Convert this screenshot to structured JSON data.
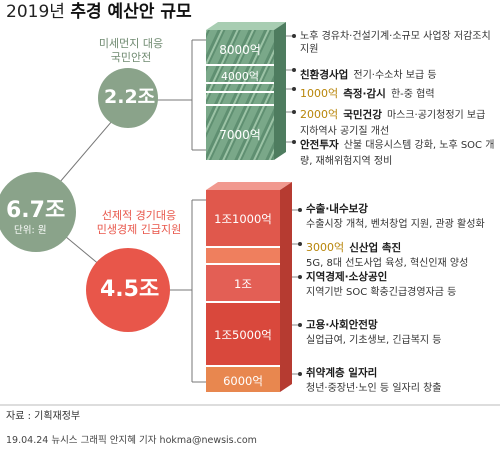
{
  "title_year": "2019년",
  "title_main": "추경 예산안 규모",
  "total": {
    "value": "6.7조",
    "unit_label": "단위: 원"
  },
  "group1": {
    "value": "2.2조",
    "label_lines": [
      "미세먼지 대응",
      "국민안전"
    ],
    "color": "#8aa38a",
    "items": [
      {
        "stack_label": "8000억",
        "title": "",
        "desc": "노후 경유차·건설기계·소규모 사업장 저감조치 지원"
      },
      {
        "stack_label": "4000억",
        "title": "친환경사업",
        "desc": "전기·수소차 보급 등"
      },
      {
        "amount": "1000억",
        "title": "측정·감시",
        "desc": "한-중 협력"
      },
      {
        "amount": "2000억",
        "title": "국민건강",
        "desc": "마스크·공기청정기 보급 지하역사 공기질 개선"
      },
      {
        "stack_label": "7000억",
        "title": "안전투자",
        "desc": "산불 대응시스템 강화, 노후 SOC 개량, 재해위험지역 정비"
      }
    ]
  },
  "group2": {
    "value": "4.5조",
    "label_lines": [
      "선제적 경기대응",
      "민생경제 긴급지원"
    ],
    "color": "#e8564a",
    "items": [
      {
        "stack_label": "1조1000억",
        "title": "수출·내수보강",
        "desc": "수출시장 개척, 벤처창업 지원, 관광 활성화"
      },
      {
        "amount": "3000억",
        "title": "신산업 촉진",
        "desc": "5G, 8대 선도사업 육성, 혁신인재 양성"
      },
      {
        "stack_label": "1조",
        "title": "지역경제·소상공인",
        "desc": "지역기반 SOC 확충긴급경영자금 등"
      },
      {
        "stack_label": "1조5000억",
        "title": "고용·사회안전망",
        "desc": "실업급여, 기초생보, 긴급복지 등"
      },
      {
        "stack_label": "6000억",
        "title": "취약계층 일자리",
        "desc": "청년·중장년·노인 등 일자리 창출"
      }
    ]
  },
  "chart_data": {
    "type": "table",
    "title": "2019년 추경 예산안 규모",
    "unit": "원",
    "total": "6.7조",
    "groups": [
      {
        "name": "미세먼지 대응 국민안전",
        "total": "2.2조",
        "items": [
          {
            "label": "노후 경유차·건설기계·소규모 사업장 저감조치 지원",
            "value": "8000억"
          },
          {
            "label": "친환경사업",
            "value": "4000억"
          },
          {
            "label": "측정·감시",
            "value": "1000억"
          },
          {
            "label": "국민건강",
            "value": "2000억"
          },
          {
            "label": "안전투자",
            "value": "7000억"
          }
        ]
      },
      {
        "name": "선제적 경기대응 민생경제 긴급지원",
        "total": "4.5조",
        "items": [
          {
            "label": "수출·내수보강",
            "value": "1조1000억"
          },
          {
            "label": "신산업 촉진",
            "value": "3000억"
          },
          {
            "label": "지역경제·소상공인",
            "value": "1조"
          },
          {
            "label": "고용·사회안전망",
            "value": "1조5000억"
          },
          {
            "label": "취약계층 일자리",
            "value": "6000억"
          }
        ]
      }
    ]
  },
  "source": "자료 : 기획재정부",
  "credit": "19.04.24 뉴시스 그래픽 안지혜 기자 hokma@newsis.com"
}
